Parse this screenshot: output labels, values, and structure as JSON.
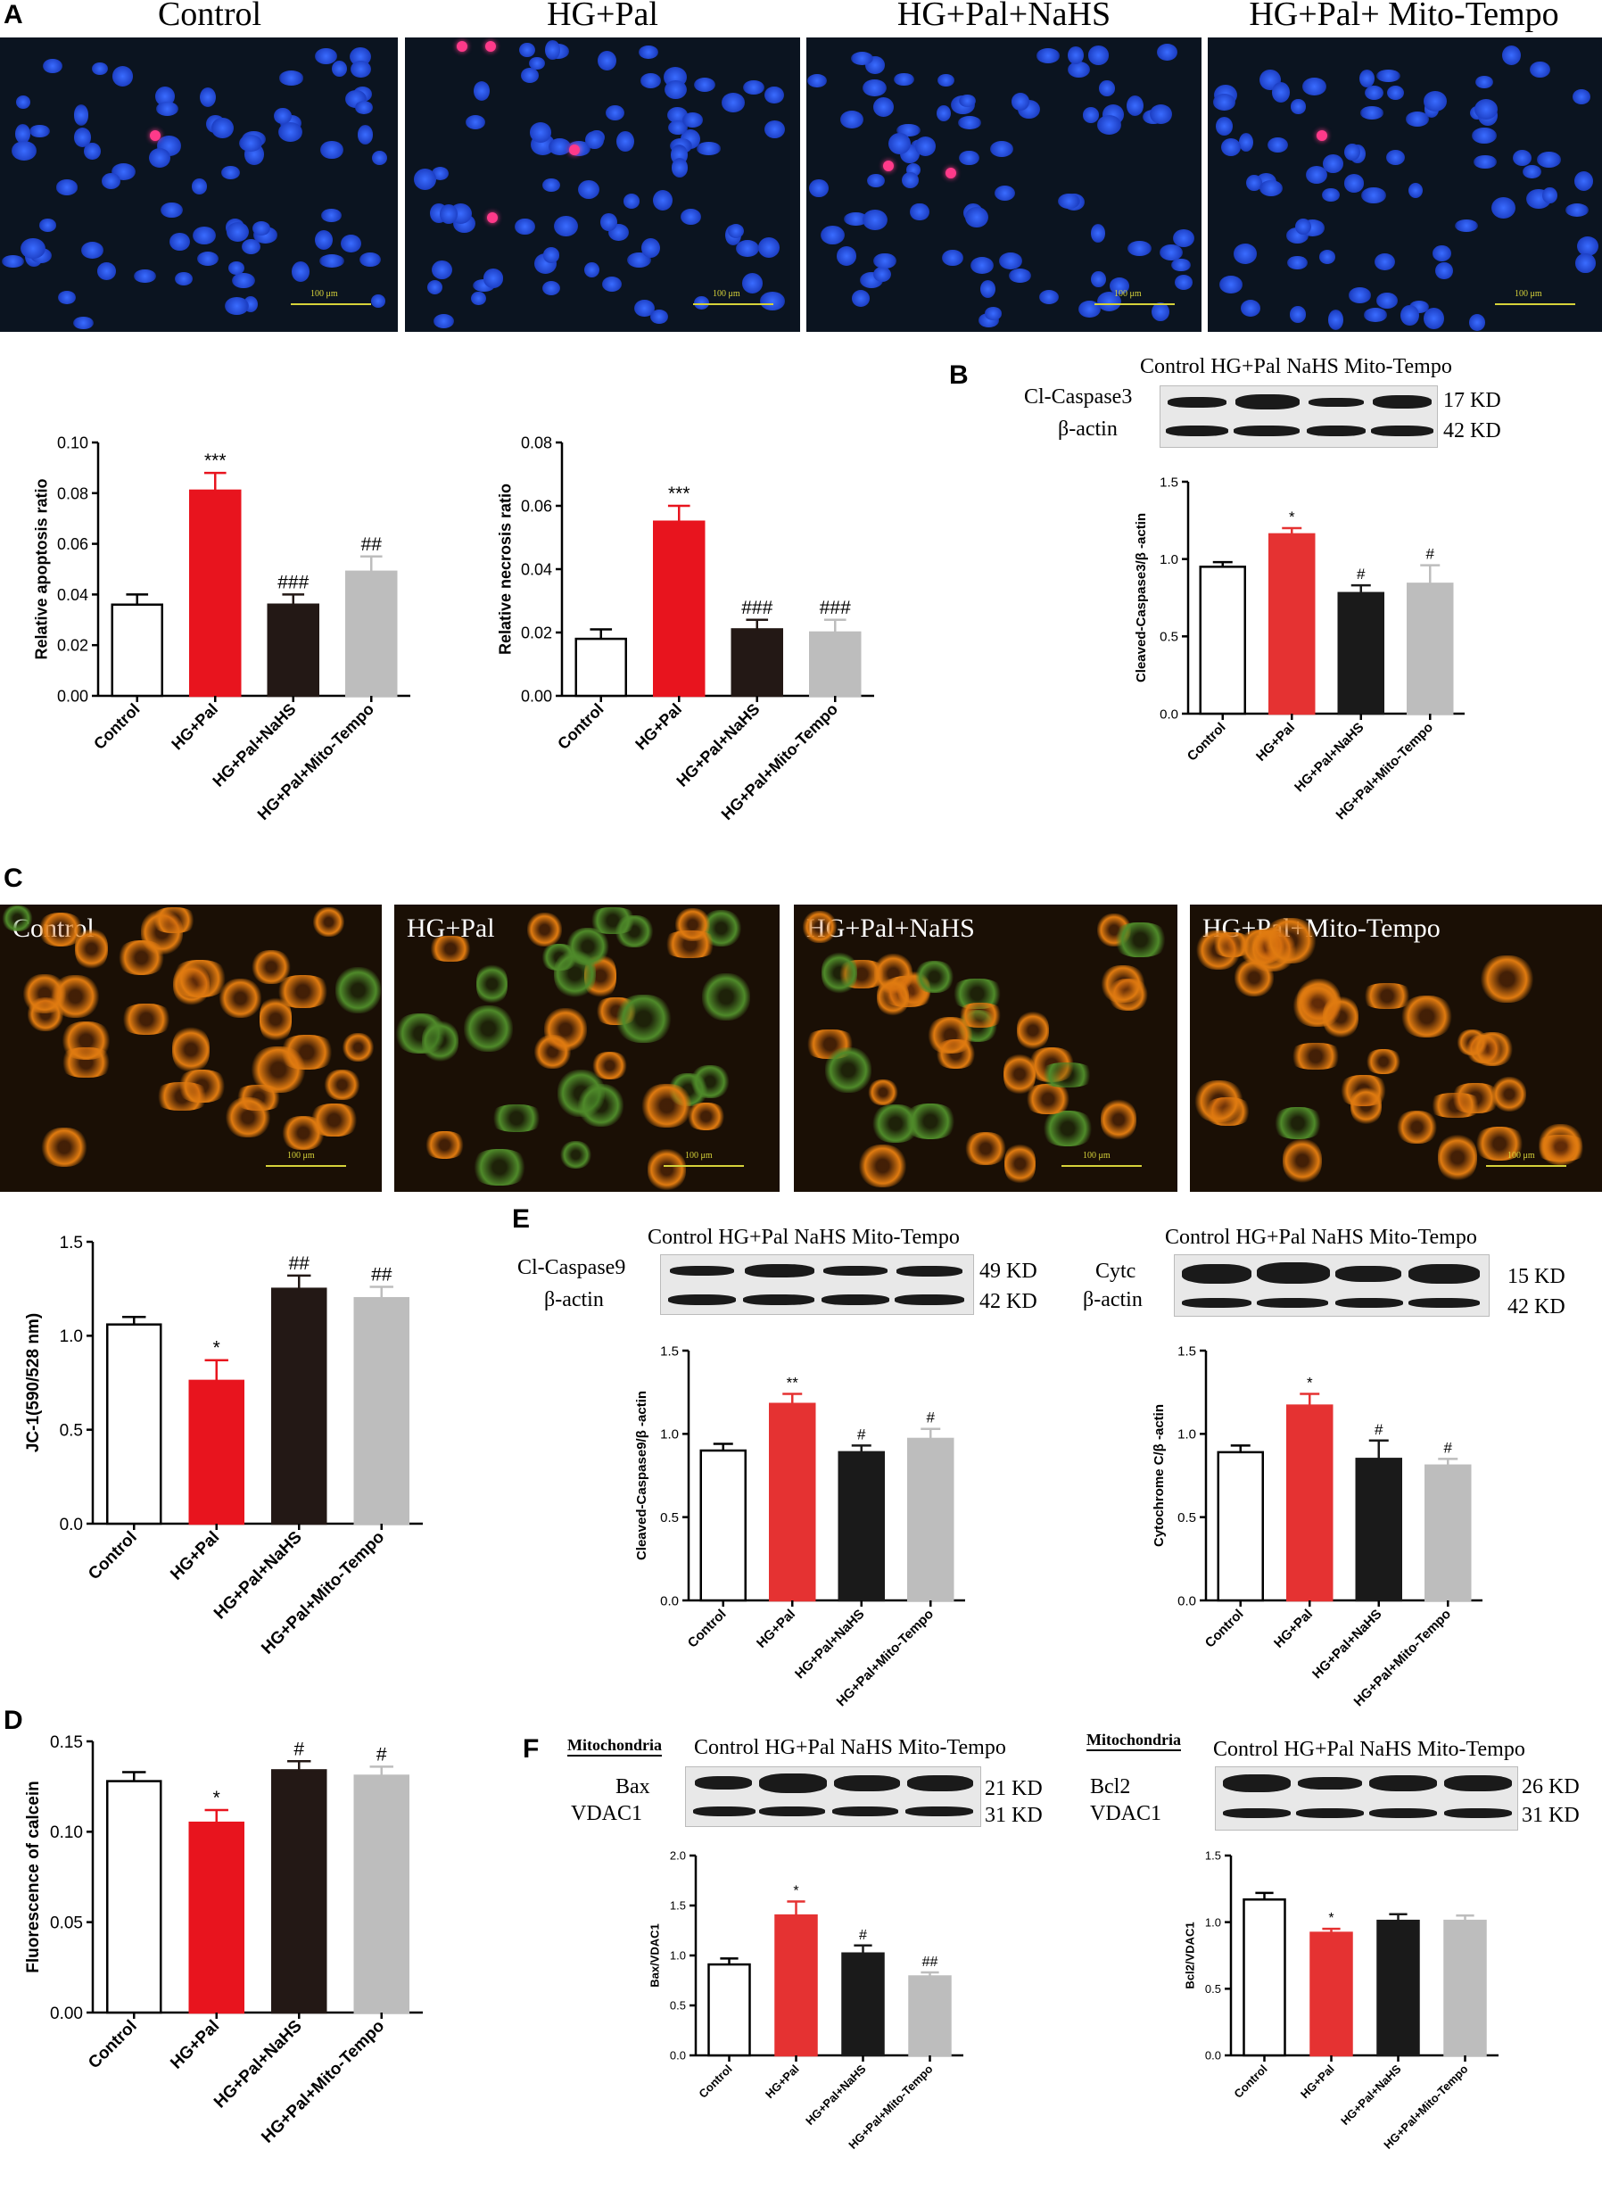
{
  "panels": {
    "A": {
      "label": "A",
      "images": [
        "Control",
        "HG+Pal",
        "HG+Pal+NaHS",
        "HG+Pal+ Mito-Tempo"
      ],
      "scale_text": "100  μm"
    },
    "B": {
      "label": "B",
      "blot": {
        "lanes": "Control  HG+Pal  NaHS   Mito-Tempo",
        "rows": [
          "Cl-Caspase3",
          "β-actin"
        ],
        "kd": [
          "17 KD",
          "42 KD"
        ]
      }
    },
    "C": {
      "label": "C",
      "images": [
        "Control",
        "HG+Pal",
        "HG+Pal+NaHS",
        "HG+Pal+Mito-Tempo"
      ],
      "scale_text": "100  μm"
    },
    "D": {
      "label": "D"
    },
    "E": {
      "label": "E",
      "blot_left": {
        "lanes": "Control  HG+Pal  NaHS   Mito-Tempo",
        "rows": [
          "Cl-Caspase9",
          "β-actin"
        ],
        "kd": [
          "49 KD",
          "42 KD"
        ]
      },
      "blot_right": {
        "lanes": "Control  HG+Pal  NaHS   Mito-Tempo",
        "rows": [
          "Cytc",
          "β-actin"
        ],
        "kd": [
          "15 KD",
          "42 KD"
        ]
      }
    },
    "F": {
      "label": "F",
      "blot_left": {
        "header": "Mitochondria",
        "lanes": "Control  HG+Pal  NaHS   Mito-Tempo",
        "rows": [
          "Bax",
          "VDAC1"
        ],
        "kd": [
          "21 KD",
          "31 KD"
        ]
      },
      "blot_right": {
        "header": "Mitochondria",
        "lanes": "Control  HG+Pal  NaHS   Mito-Tempo",
        "rows": [
          "Bcl2",
          "VDAC1"
        ],
        "kd": [
          "26 KD",
          "31 KD"
        ]
      }
    }
  },
  "colors": {
    "control": "#ffffff",
    "hg_pal": "#e8141e",
    "hg_pal_red_light": "#e53232",
    "nahs": "#231815",
    "nahs_black": "#1a1a1a",
    "mito_tempo": "#bdbdbd"
  },
  "chart_data": [
    {
      "id": "apoptosis",
      "type": "bar",
      "categories": [
        "Control",
        "HG+Pal",
        "HG+Pal+NaHS",
        "HG+Pal+Mito-Tempo"
      ],
      "values": [
        0.036,
        0.081,
        0.036,
        0.049
      ],
      "errors": [
        0.004,
        0.007,
        0.004,
        0.006
      ],
      "annotations": [
        "",
        "***",
        "###",
        "##"
      ],
      "ylabel": "Relative apoptosis ratio",
      "ylim": [
        0,
        0.1
      ],
      "yticks": [
        "0.00",
        "0.02",
        "0.04",
        "0.06",
        "0.08",
        "0.10"
      ]
    },
    {
      "id": "necrosis",
      "type": "bar",
      "categories": [
        "Control",
        "HG+Pal",
        "HG+Pal+NaHS",
        "HG+Pal+Mito-Tempo"
      ],
      "values": [
        0.018,
        0.055,
        0.021,
        0.02
      ],
      "errors": [
        0.003,
        0.005,
        0.003,
        0.004
      ],
      "annotations": [
        "",
        "***",
        "###",
        "###"
      ],
      "ylabel": "Relative necrosis ratio",
      "ylim": [
        0,
        0.08
      ],
      "yticks": [
        "0.00",
        "0.02",
        "0.04",
        "0.06",
        "0.08"
      ]
    },
    {
      "id": "caspase3",
      "type": "bar",
      "categories": [
        "Control",
        "HG+Pal",
        "HG+Pal+NaHS",
        "HG+Pal+Mito-Tempo"
      ],
      "values": [
        0.95,
        1.16,
        0.78,
        0.84
      ],
      "errors": [
        0.03,
        0.04,
        0.05,
        0.12
      ],
      "annotations": [
        "",
        "*",
        "#",
        "#"
      ],
      "ylabel": "Cleaved-Caspase3/β -actin",
      "ylim": [
        0,
        1.5
      ],
      "yticks": [
        "0.0",
        "0.5",
        "1.0",
        "1.5"
      ]
    },
    {
      "id": "jc1",
      "type": "bar",
      "categories": [
        "Control",
        "HG+Pal",
        "HG+Pal+NaHS",
        "HG+Pal+Mito-Tempo"
      ],
      "values": [
        1.06,
        0.76,
        1.25,
        1.2
      ],
      "errors": [
        0.04,
        0.11,
        0.07,
        0.06
      ],
      "annotations": [
        "",
        "*",
        "##",
        "##"
      ],
      "ylabel": "JC-1(590/528 nm)",
      "ylim": [
        0,
        1.5
      ],
      "yticks": [
        "0.0",
        "0.5",
        "1.0",
        "1.5"
      ]
    },
    {
      "id": "caspase9",
      "type": "bar",
      "categories": [
        "Control",
        "HG+Pal",
        "HG+Pal+NaHS",
        "HG+Pal+Mito-Tempo"
      ],
      "values": [
        0.9,
        1.18,
        0.89,
        0.97
      ],
      "errors": [
        0.04,
        0.06,
        0.04,
        0.06
      ],
      "annotations": [
        "",
        "**",
        "#",
        "#"
      ],
      "ylabel": "Cleaved-Caspase9/β -actin",
      "ylim": [
        0,
        1.5
      ],
      "yticks": [
        "0.0",
        "0.5",
        "1.0",
        "1.5"
      ]
    },
    {
      "id": "cytc",
      "type": "bar",
      "categories": [
        "Control",
        "HG+Pal",
        "HG+Pal+NaHS",
        "HG+Pal+Mito-Tempo"
      ],
      "values": [
        0.89,
        1.17,
        0.85,
        0.81
      ],
      "errors": [
        0.04,
        0.07,
        0.11,
        0.04
      ],
      "annotations": [
        "",
        "*",
        "#",
        "#"
      ],
      "ylabel": "Cytochrome C/β -actin",
      "ylim": [
        0,
        1.5
      ],
      "yticks": [
        "0.0",
        "0.5",
        "1.0",
        "1.5"
      ]
    },
    {
      "id": "calcein",
      "type": "bar",
      "categories": [
        "Control",
        "HG+Pal",
        "HG+Pal+NaHS",
        "HG+Pal+Mito-Tempo"
      ],
      "values": [
        0.128,
        0.105,
        0.134,
        0.131
      ],
      "errors": [
        0.005,
        0.007,
        0.005,
        0.005
      ],
      "annotations": [
        "",
        "*",
        "#",
        "#"
      ],
      "ylabel": "Fluorescence of calcein",
      "ylim": [
        0,
        0.15
      ],
      "yticks": [
        "0.00",
        "0.05",
        "0.10",
        "0.15"
      ]
    },
    {
      "id": "bax",
      "type": "bar",
      "categories": [
        "Control",
        "HG+Pal",
        "HG+Pal+NaHS",
        "HG+Pal+Mito-Tempo"
      ],
      "values": [
        0.91,
        1.4,
        1.02,
        0.79
      ],
      "errors": [
        0.06,
        0.14,
        0.08,
        0.04
      ],
      "annotations": [
        "",
        "*",
        "#",
        "##"
      ],
      "ylabel": "Bax/VDAC1",
      "ylim": [
        0,
        2.0
      ],
      "yticks": [
        "0.0",
        "0.5",
        "1.0",
        "1.5",
        "2.0"
      ]
    },
    {
      "id": "bcl2",
      "type": "bar",
      "categories": [
        "Control",
        "HG+Pal",
        "HG+Pal+NaHS",
        "HG+Pal+Mito-Tempo"
      ],
      "values": [
        1.17,
        0.92,
        1.01,
        1.01
      ],
      "errors": [
        0.05,
        0.03,
        0.05,
        0.04
      ],
      "annotations": [
        "",
        "*",
        "",
        ""
      ],
      "ylabel": "Bcl2/VDAC1",
      "ylim": [
        0,
        1.5
      ],
      "yticks": [
        "0.0",
        "0.5",
        "1.0",
        "1.5"
      ]
    }
  ]
}
